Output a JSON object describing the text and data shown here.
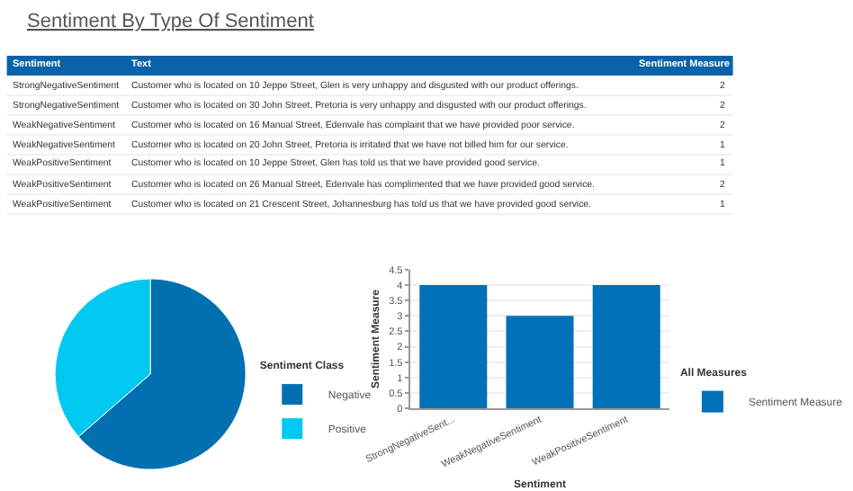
{
  "chart_data": [
    {
      "type": "other",
      "title": "Sentiment By Type Of Sentiment",
      "categories": [
        "Sentiment",
        "Text",
        "Sentiment Measure"
      ],
      "annotations": [
        "StrongNegativeSentiment",
        "Customer who is located on 10 Jeppe Street, Glen is very unhappy and disgusted with our product offerings.",
        "2",
        "StrongNegativeSentiment",
        "Customer who is located on 30 John Street, Pretoria is very unhappy and disgusted with our product offerings.",
        "2",
        "WeakNegativeSentiment",
        "Customer who is located on 16 Manual Street, Edenvale has complaint that we have provided poor service.",
        "2",
        "WeakNegativeSentiment",
        "Customer who is located on 20 John Street, Pretoria is irritated that we have not billed him for our service.",
        "1",
        "WeakPositiveSentiment",
        "Customer who is located on 10 Jeppe Street, Glen has told us that we have provided good service.",
        "1",
        "WeakPositiveSentiment",
        "Customer who is located on 26 Manual Street, Edenvale has complimented that we have provided good service.",
        "2",
        "WeakPositiveSentiment",
        "Customer who is located on 21 Crescent Street, Johannesburg has told us that we have provided good service.",
        "1"
      ]
    },
    {
      "type": "pie",
      "legend_title": "Sentiment Class",
      "categories": [
        "Negative",
        "Positive"
      ],
      "values": [
        63.6,
        36.4
      ],
      "colors": [
        "#0070b0",
        "#00c8f0"
      ],
      "legend": "right"
    },
    {
      "type": "bar",
      "categories": [
        "StrongNegativeSent...",
        "WeakNegativeSentiment",
        "WeakPositiveSentiment"
      ],
      "xlabel": "Sentiment",
      "ylabel": "Sentiment Measure",
      "legend_title": "All Measures",
      "legend": "right",
      "grid": "y",
      "series": [
        {
          "name": "Sentiment Measure",
          "color": "#0070b8",
          "values": [
            4,
            3,
            4
          ]
        }
      ],
      "ylim": [
        0,
        4.5
      ],
      "yticks": [
        0,
        0.5,
        1,
        1.5,
        2,
        2.5,
        3,
        3.5,
        4,
        4.5
      ]
    }
  ]
}
